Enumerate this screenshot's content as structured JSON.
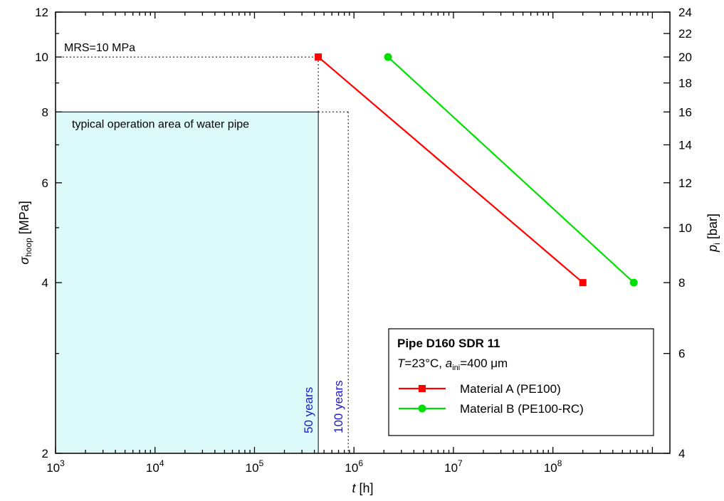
{
  "chart_data": {
    "type": "line",
    "xlabel": {
      "symbol": "t",
      "unit": " [h]"
    },
    "ylabel": {
      "symbol": "σ",
      "sub": "hoop",
      "unit": " [MPa]"
    },
    "y2label": {
      "symbol": "p",
      "sub": "i",
      "unit": " [bar]"
    },
    "xscale": "log",
    "yscale": "log",
    "xlim": [
      1000,
      1500000000
    ],
    "ylim": [
      2,
      12
    ],
    "y2lim": [
      4,
      24
    ],
    "xticks": [
      {
        "value": 1000,
        "base": "10",
        "exp": "3"
      },
      {
        "value": 10000,
        "base": "10",
        "exp": "4"
      },
      {
        "value": 100000,
        "base": "10",
        "exp": "5"
      },
      {
        "value": 1000000,
        "base": "10",
        "exp": "6"
      },
      {
        "value": 10000000,
        "base": "10",
        "exp": "7"
      },
      {
        "value": 100000000,
        "base": "10",
        "exp": "8"
      }
    ],
    "yticks": [
      {
        "value": 2,
        "label": "2"
      },
      {
        "value": 4,
        "label": "4"
      },
      {
        "value": 6,
        "label": "6"
      },
      {
        "value": 8,
        "label": "8"
      },
      {
        "value": 10,
        "label": "10"
      },
      {
        "value": 12,
        "label": "12"
      }
    ],
    "y2ticks": [
      {
        "value": 4,
        "label": "4"
      },
      {
        "value": 6,
        "label": "6"
      },
      {
        "value": 8,
        "label": "8"
      },
      {
        "value": 10,
        "label": "10"
      },
      {
        "value": 12,
        "label": "12"
      },
      {
        "value": 14,
        "label": "14"
      },
      {
        "value": 16,
        "label": "16"
      },
      {
        "value": 18,
        "label": "18"
      },
      {
        "value": 20,
        "label": "20"
      },
      {
        "value": 22,
        "label": "22"
      },
      {
        "value": 24,
        "label": "24"
      }
    ],
    "series": [
      {
        "name": "Material A (PE100)",
        "color": "#ff0000",
        "marker": "square",
        "points": [
          {
            "x": 438000,
            "y": 10
          },
          {
            "x": 200000000,
            "y": 4
          }
        ]
      },
      {
        "name": "Material B (PE100-RC)",
        "color": "#00e000",
        "marker": "circle",
        "points": [
          {
            "x": 2200000,
            "y": 10
          },
          {
            "x": 650000000,
            "y": 4
          }
        ]
      }
    ],
    "operation_area": {
      "label": "typical operation area of water pipe",
      "x": [
        1000,
        438000
      ],
      "y": [
        2,
        8
      ],
      "color": "#ddfafa"
    },
    "annotations": {
      "mrs": {
        "label": "MRS=10 MPa",
        "y": 10,
        "x_end": 438000
      },
      "year50": {
        "label": "50 years",
        "x": 438000
      },
      "year100": {
        "label": "100 years",
        "x": 876000,
        "y_top": 8
      }
    },
    "legend": {
      "position": "bottom-right",
      "title": "Pipe D160 SDR 11",
      "condition": {
        "T": "T",
        "T_rest": "=23°C, ",
        "a": "a",
        "a_sub": "ini",
        "a_rest": "=400 μm"
      }
    },
    "grid": false
  }
}
